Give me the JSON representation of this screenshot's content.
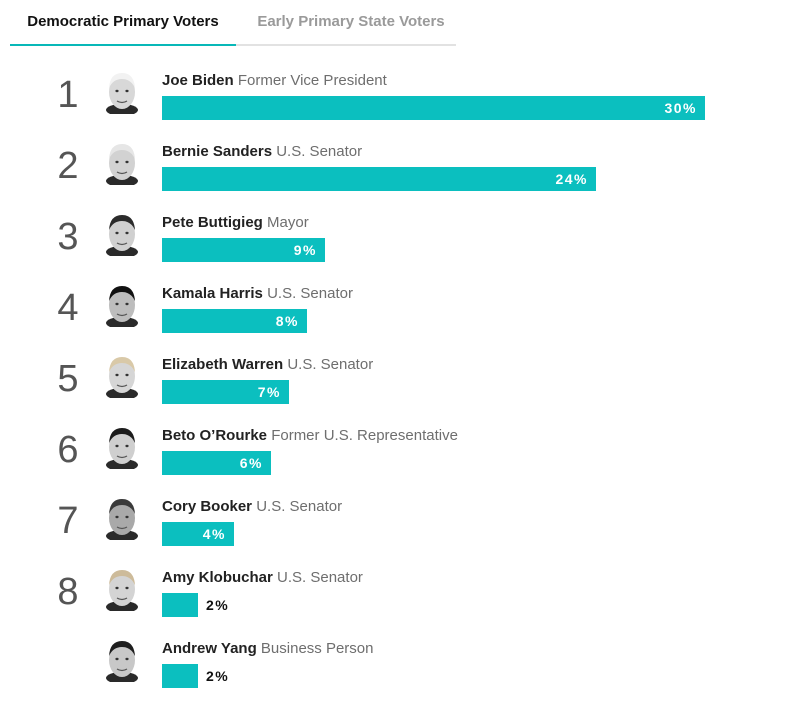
{
  "tabs": [
    {
      "label": "Democratic Primary Voters",
      "active": true
    },
    {
      "label": "Early Primary State Voters",
      "active": false
    }
  ],
  "colors": {
    "bar": "#0bbfbf",
    "accent": "#08b8b8"
  },
  "chart_data": {
    "type": "bar",
    "orientation": "horizontal",
    "xlim": [
      0,
      30
    ],
    "categories": [
      "Joe Biden",
      "Bernie Sanders",
      "Pete Buttigieg",
      "Kamala Harris",
      "Elizabeth Warren",
      "Beto O’Rourke",
      "Cory Booker",
      "Amy Klobuchar",
      "Andrew Yang"
    ],
    "values": [
      30,
      24,
      9,
      8,
      7,
      6,
      4,
      2,
      2
    ],
    "rows": [
      {
        "rank": "1",
        "name": "Joe Biden",
        "title": "Former Vice President",
        "value": 30,
        "value_label": "30%"
      },
      {
        "rank": "2",
        "name": "Bernie Sanders",
        "title": "U.S. Senator",
        "value": 24,
        "value_label": "24%"
      },
      {
        "rank": "3",
        "name": "Pete Buttigieg",
        "title": "Mayor",
        "value": 9,
        "value_label": "9%"
      },
      {
        "rank": "4",
        "name": "Kamala Harris",
        "title": "U.S. Senator",
        "value": 8,
        "value_label": "8%"
      },
      {
        "rank": "5",
        "name": "Elizabeth Warren",
        "title": "U.S. Senator",
        "value": 7,
        "value_label": "7%"
      },
      {
        "rank": "6",
        "name": "Beto O’Rourke",
        "title": "Former U.S. Representative",
        "value": 6,
        "value_label": "6%"
      },
      {
        "rank": "7",
        "name": "Cory Booker",
        "title": "U.S. Senator",
        "value": 4,
        "value_label": "4%"
      },
      {
        "rank": "8",
        "name": "Amy Klobuchar",
        "title": "U.S. Senator",
        "value": 2,
        "value_label": "2%"
      },
      {
        "rank": "",
        "name": "Andrew Yang",
        "title": "Business Person",
        "value": 2,
        "value_label": "2%"
      }
    ]
  }
}
